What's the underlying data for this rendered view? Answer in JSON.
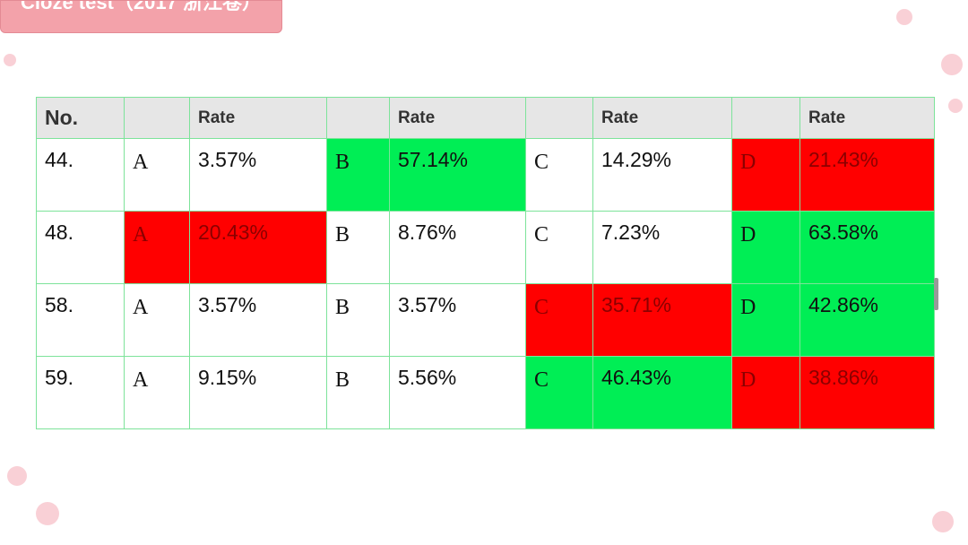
{
  "header": {
    "title": "Cloze test（2017 浙江卷）"
  },
  "table": {
    "header": {
      "no": "No.",
      "rates": [
        "Rate",
        "Rate",
        "Rate",
        "Rate"
      ]
    },
    "rows": [
      {
        "no": "44.",
        "options": [
          {
            "letter": "A",
            "rate": "3.57%"
          },
          {
            "letter": "B",
            "rate": "57.14%",
            "color": "#00ee55"
          },
          {
            "letter": "C",
            "rate": "14.29%"
          },
          {
            "letter": "D",
            "rate": "21.43%",
            "color": "#ff0000"
          }
        ]
      },
      {
        "no": "48.",
        "options": [
          {
            "letter": "A",
            "rate": "20.43%",
            "color": "#ff0000"
          },
          {
            "letter": "B",
            "rate": "8.76%"
          },
          {
            "letter": "C",
            "rate": "7.23%"
          },
          {
            "letter": "D",
            "rate": "63.58%",
            "color": "#00ee55"
          }
        ]
      },
      {
        "no": "58.",
        "options": [
          {
            "letter": "A",
            "rate": "3.57%"
          },
          {
            "letter": "B",
            "rate": "3.57%"
          },
          {
            "letter": "C",
            "rate": "35.71%",
            "color": "#ff0000"
          },
          {
            "letter": "D",
            "rate": "42.86%",
            "color": "#00ee55"
          }
        ]
      },
      {
        "no": "59.",
        "options": [
          {
            "letter": "A",
            "rate": "9.15%"
          },
          {
            "letter": "B",
            "rate": "5.56%"
          },
          {
            "letter": "C",
            "rate": "46.43%",
            "color": "#00ee55"
          },
          {
            "letter": "D",
            "rate": "38.86%",
            "color": "#ff0000"
          }
        ]
      }
    ]
  }
}
